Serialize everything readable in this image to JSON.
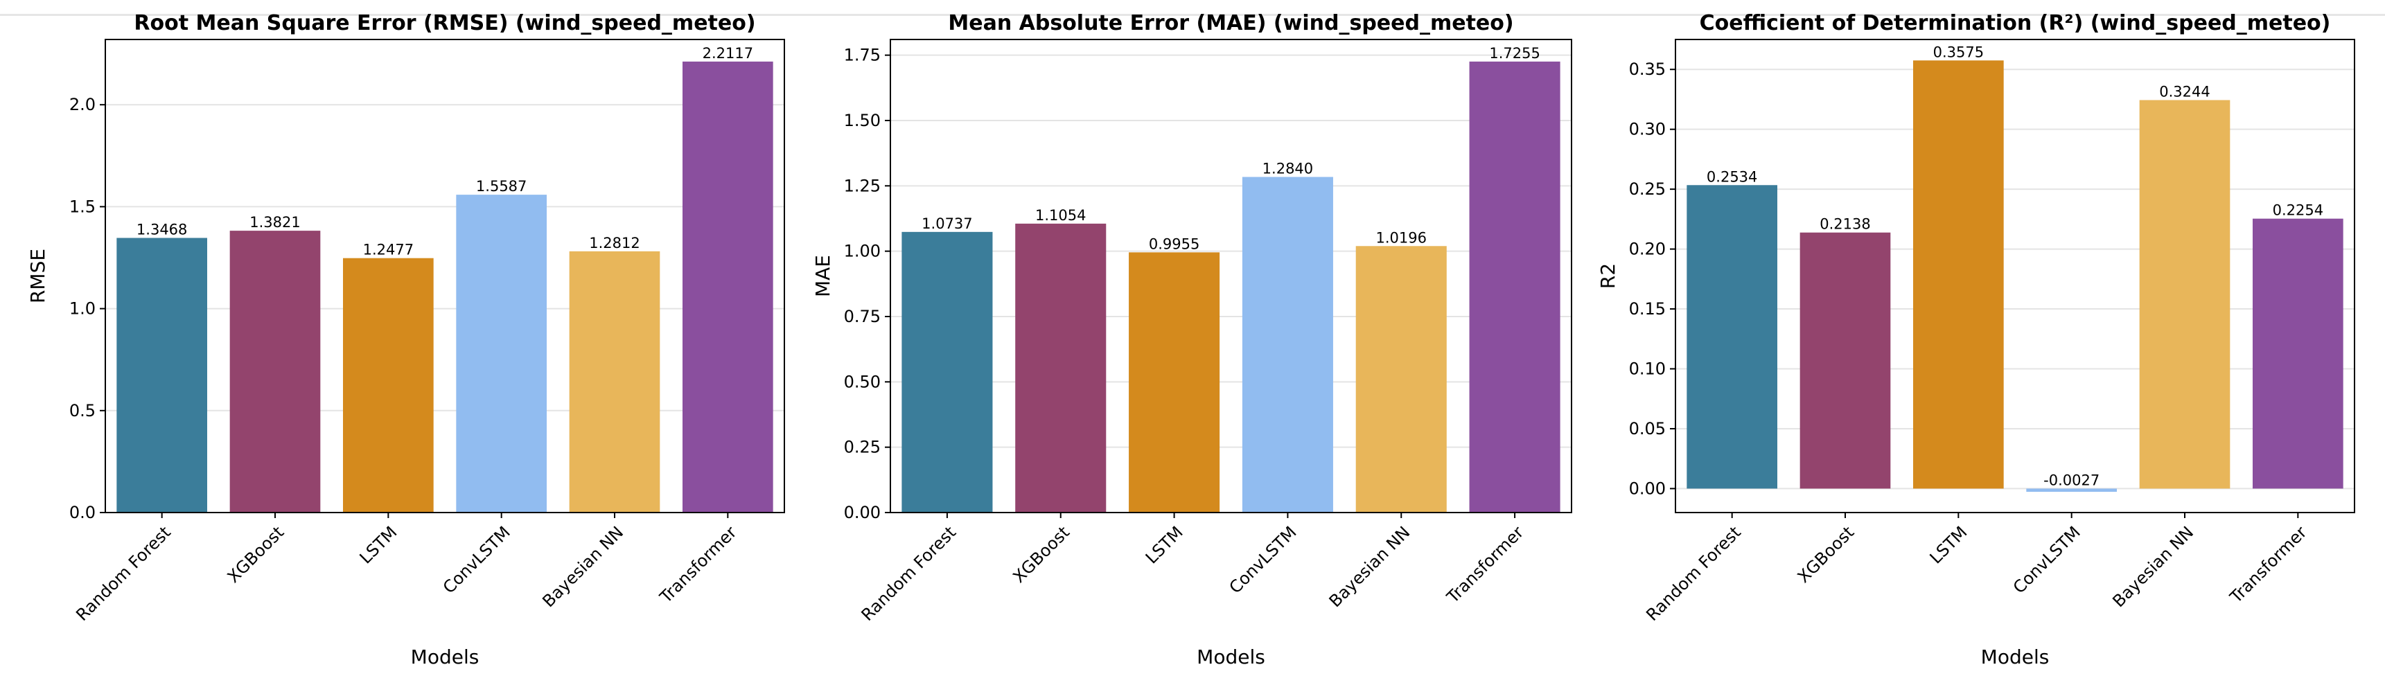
{
  "chart_data": [
    {
      "type": "bar",
      "title": "Root Mean Square Error (RMSE) (wind_speed_meteo)",
      "xlabel": "Models",
      "ylabel": "RMSE",
      "categories": [
        "Random Forest",
        "XGBoost",
        "LSTM",
        "ConvLSTM",
        "Bayesian NN",
        "Transformer"
      ],
      "values": [
        1.3468,
        1.3821,
        1.2477,
        1.5587,
        1.2812,
        2.2117
      ],
      "data_labels": [
        "1.3468",
        "1.3821",
        "1.2477",
        "1.5587",
        "1.2812",
        "2.2117"
      ],
      "ylim": [
        0,
        2.32
      ],
      "yticks": [
        0.0,
        0.5,
        1.0,
        1.5,
        2.0
      ],
      "ytick_labels": [
        "0.0",
        "0.5",
        "1.0",
        "1.5",
        "2.0"
      ],
      "grid": "horizontal",
      "colors": [
        "#3b7d9a",
        "#93446d",
        "#d48a1d",
        "#91bcf0",
        "#e8b65a",
        "#8a4f9e"
      ]
    },
    {
      "type": "bar",
      "title": "Mean Absolute Error (MAE) (wind_speed_meteo)",
      "xlabel": "Models",
      "ylabel": "MAE",
      "categories": [
        "Random Forest",
        "XGBoost",
        "LSTM",
        "ConvLSTM",
        "Bayesian NN",
        "Transformer"
      ],
      "values": [
        1.0737,
        1.1054,
        0.9955,
        1.284,
        1.0196,
        1.7255
      ],
      "data_labels": [
        "1.0737",
        "1.1054",
        "0.9955",
        "1.2840",
        "1.0196",
        "1.7255"
      ],
      "ylim": [
        0,
        1.81
      ],
      "yticks": [
        0.0,
        0.25,
        0.5,
        0.75,
        1.0,
        1.25,
        1.5,
        1.75
      ],
      "ytick_labels": [
        "0.00",
        "0.25",
        "0.50",
        "0.75",
        "1.00",
        "1.25",
        "1.50",
        "1.75"
      ],
      "grid": "horizontal",
      "colors": [
        "#3b7d9a",
        "#93446d",
        "#d48a1d",
        "#91bcf0",
        "#e8b65a",
        "#8a4f9e"
      ]
    },
    {
      "type": "bar",
      "title": "Coefficient of Determination (R²) (wind_speed_meteo)",
      "xlabel": "Models",
      "ylabel": "R2",
      "categories": [
        "Random Forest",
        "XGBoost",
        "LSTM",
        "ConvLSTM",
        "Bayesian NN",
        "Transformer"
      ],
      "values": [
        0.2534,
        0.2138,
        0.3575,
        -0.0027,
        0.3244,
        0.2254
      ],
      "data_labels": [
        "0.2534",
        "0.2138",
        "0.3575",
        "-0.0027",
        "0.3244",
        "0.2254"
      ],
      "ylim": [
        -0.02,
        0.375
      ],
      "yticks": [
        0.0,
        0.05,
        0.1,
        0.15,
        0.2,
        0.25,
        0.3,
        0.35
      ],
      "ytick_labels": [
        "0.00",
        "0.05",
        "0.10",
        "0.15",
        "0.20",
        "0.25",
        "0.30",
        "0.35"
      ],
      "grid": "horizontal",
      "colors": [
        "#3b7d9a",
        "#93446d",
        "#d48a1d",
        "#91bcf0",
        "#e8b65a",
        "#8a4f9e"
      ]
    }
  ]
}
